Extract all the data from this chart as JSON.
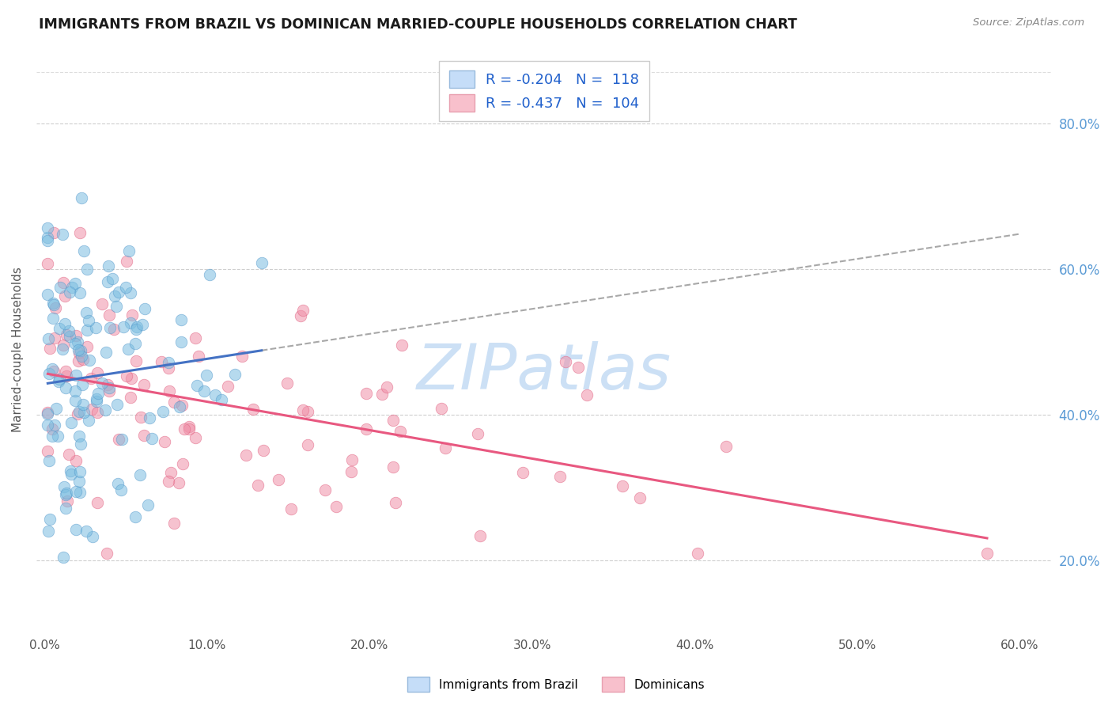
{
  "title": "IMMIGRANTS FROM BRAZIL VS DOMINICAN MARRIED-COUPLE HOUSEHOLDS CORRELATION CHART",
  "source": "Source: ZipAtlas.com",
  "x_tick_vals": [
    0.0,
    0.1,
    0.2,
    0.3,
    0.4,
    0.5,
    0.6
  ],
  "x_tick_labels": [
    "0.0%",
    "10.0%",
    "20.0%",
    "30.0%",
    "40.0%",
    "50.0%",
    "60.0%"
  ],
  "y_tick_vals": [
    0.2,
    0.4,
    0.6,
    0.8
  ],
  "y_tick_labels": [
    "20.0%",
    "40.0%",
    "60.0%",
    "80.0%"
  ],
  "xlim": [
    -0.005,
    0.62
  ],
  "ylim": [
    0.1,
    0.88
  ],
  "brazil_color": "#7bbde0",
  "brazil_edge": "#5599cc",
  "dominican_color": "#f090a8",
  "dominican_edge": "#e06080",
  "brazil_line_color": "#4472c4",
  "dominican_line_color": "#e85880",
  "dash_line_color": "#999999",
  "watermark": "ZIPatlas",
  "watermark_color": "#cce0f5",
  "grid_color": "#bbbbbb",
  "brazil_R": -0.204,
  "brazil_N": 118,
  "dominican_R": -0.437,
  "dominican_N": 104,
  "scatter_alpha": 0.55,
  "scatter_size": 110,
  "legend_label1": "R = -0.204   N =  118",
  "legend_label2": "R = -0.437   N =  104",
  "legend_face1": "#c5ddf8",
  "legend_face2": "#f8c0cc",
  "legend_edge1": "#99bbdd",
  "legend_edge2": "#e8a0b0",
  "ylabel": "Married-couple Households",
  "bottom_label1": "Immigrants from Brazil",
  "bottom_label2": "Dominicans"
}
